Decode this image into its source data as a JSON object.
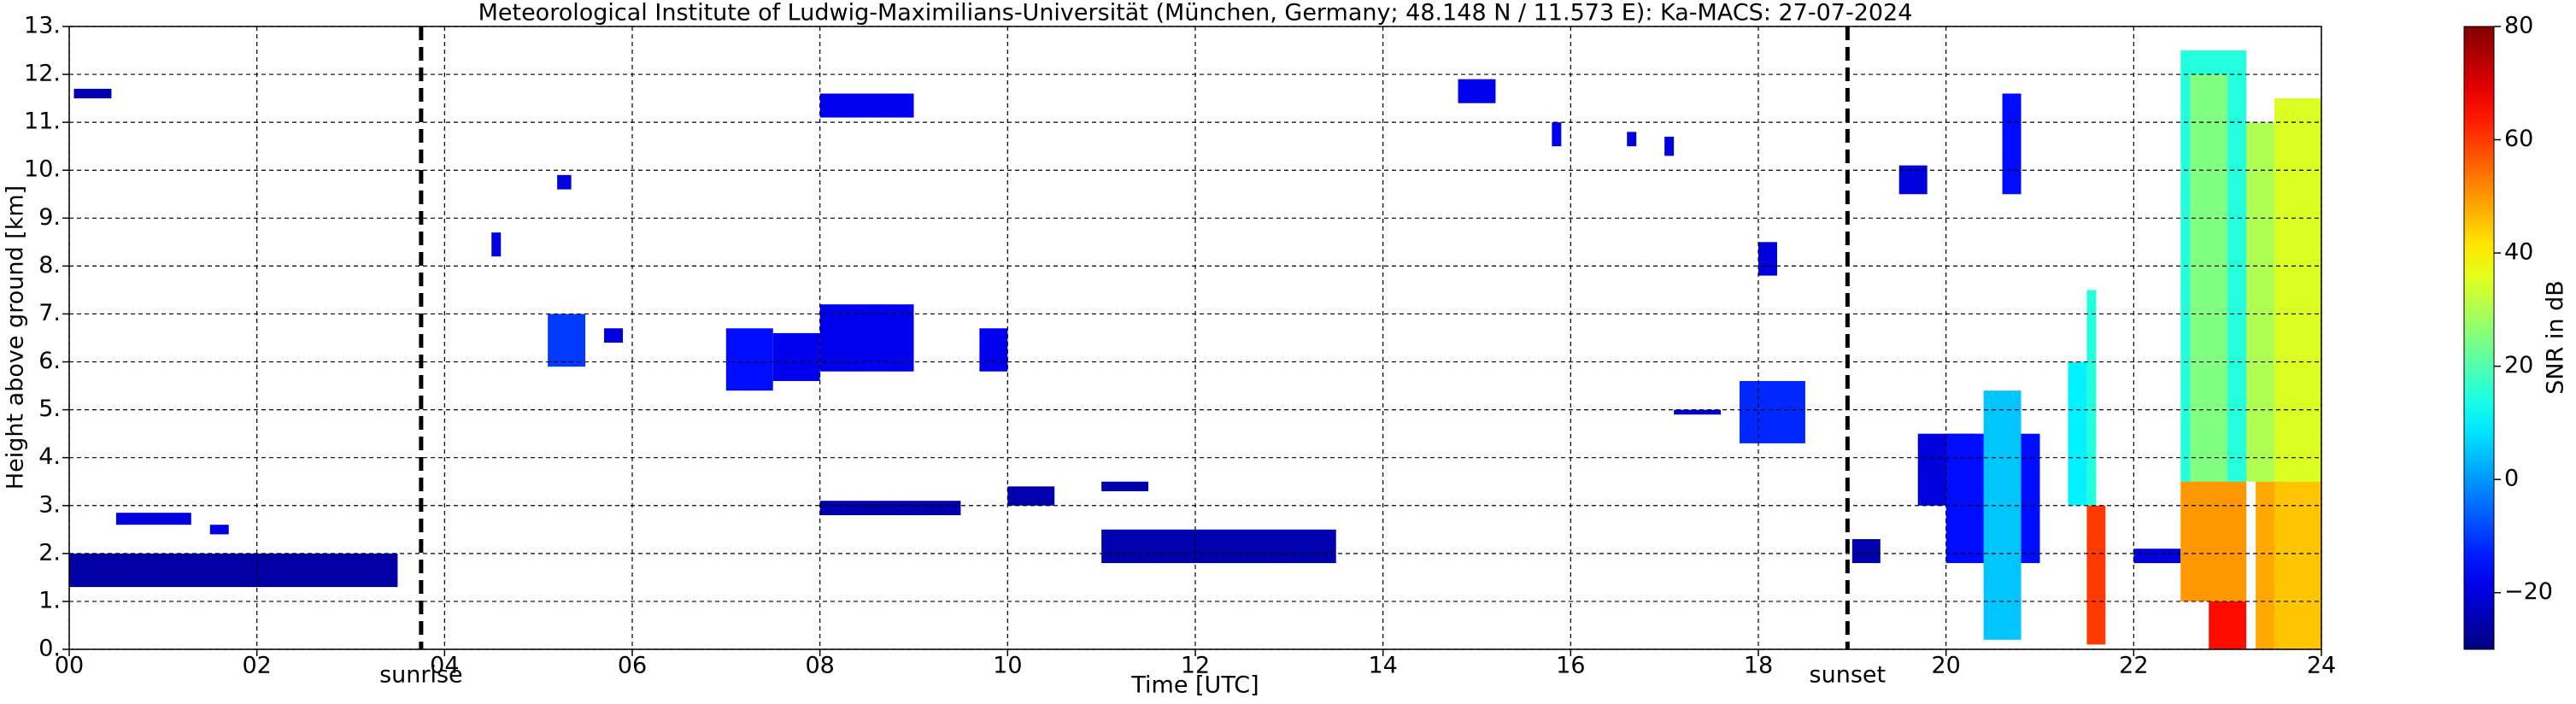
{
  "chart_data": {
    "type": "heatmap",
    "title": "Meteorological Institute of Ludwig-Maximilians-Universität (München, Germany; 48.148 N / 11.573 E):    Ka-MACS: 27-07-2024",
    "xlabel": "Time [UTC]",
    "ylabel": "Height above ground [km]",
    "colorbar_label": "SNR in dB",
    "xlim": [
      0,
      24
    ],
    "ylim": [
      0,
      13
    ],
    "clim": [
      -30,
      80
    ],
    "colormap": "jet",
    "grid": true,
    "xticks": [
      {
        "value": 0,
        "label": "00"
      },
      {
        "value": 2,
        "label": "02"
      },
      {
        "value": 4,
        "label": "04"
      },
      {
        "value": 6,
        "label": "06"
      },
      {
        "value": 8,
        "label": "08"
      },
      10,
      12,
      14,
      16,
      18,
      20,
      22,
      24
    ],
    "yticks": [
      {
        "value": 0,
        "label": "0."
      },
      {
        "value": 1,
        "label": "1."
      },
      {
        "value": 2,
        "label": "2."
      },
      {
        "value": 3,
        "label": "3."
      },
      {
        "value": 4,
        "label": "4."
      },
      {
        "value": 5,
        "label": "5."
      },
      {
        "value": 6,
        "label": "6."
      },
      {
        "value": 7,
        "label": "7."
      },
      {
        "value": 8,
        "label": "8."
      },
      {
        "value": 9,
        "label": "9."
      },
      {
        "value": 10,
        "label": "10."
      },
      {
        "value": 11,
        "label": "11."
      },
      {
        "value": 12,
        "label": "12."
      },
      {
        "value": 13,
        "label": "13."
      }
    ],
    "cticks": [
      {
        "value": -20,
        "label": "−20"
      },
      0,
      20,
      40,
      60,
      80
    ],
    "annotations": [
      {
        "text": "sunrise",
        "x": 3.75
      },
      {
        "text": "sunset",
        "x": 18.95
      }
    ],
    "cells": [
      {
        "x": [
          0.05,
          0.45
        ],
        "y": [
          11.5,
          11.7
        ],
        "value": -25
      },
      {
        "x": [
          0.5,
          1.3
        ],
        "y": [
          2.6,
          2.85
        ],
        "value": -20
      },
      {
        "x": [
          1.5,
          1.7
        ],
        "y": [
          2.4,
          2.6
        ],
        "value": -20
      },
      {
        "x": [
          0.0,
          3.5
        ],
        "y": [
          1.3,
          2.0
        ],
        "value": -26
      },
      {
        "x": [
          4.5,
          4.6
        ],
        "y": [
          8.2,
          8.7
        ],
        "value": -20
      },
      {
        "x": [
          5.2,
          5.35
        ],
        "y": [
          9.6,
          9.9
        ],
        "value": -20
      },
      {
        "x": [
          5.1,
          5.5
        ],
        "y": [
          5.9,
          7.0
        ],
        "value": -10
      },
      {
        "x": [
          5.7,
          5.9
        ],
        "y": [
          6.4,
          6.7
        ],
        "value": -20
      },
      {
        "x": [
          7.0,
          7.5
        ],
        "y": [
          5.4,
          6.7
        ],
        "value": -15
      },
      {
        "x": [
          7.5,
          8.0
        ],
        "y": [
          5.6,
          6.6
        ],
        "value": -18
      },
      {
        "x": [
          8.0,
          9.0
        ],
        "y": [
          5.8,
          7.2
        ],
        "value": -18
      },
      {
        "x": [
          9.7,
          10.0
        ],
        "y": [
          5.8,
          6.7
        ],
        "value": -18
      },
      {
        "x": [
          8.0,
          9.0
        ],
        "y": [
          11.1,
          11.6
        ],
        "value": -18
      },
      {
        "x": [
          8.0,
          9.5
        ],
        "y": [
          2.8,
          3.1
        ],
        "value": -25
      },
      {
        "x": [
          10.0,
          10.5
        ],
        "y": [
          3.0,
          3.4
        ],
        "value": -25
      },
      {
        "x": [
          11.0,
          11.5
        ],
        "y": [
          3.3,
          3.5
        ],
        "value": -25
      },
      {
        "x": [
          11.0,
          13.5
        ],
        "y": [
          1.8,
          2.5
        ],
        "value": -25
      },
      {
        "x": [
          14.8,
          15.2
        ],
        "y": [
          11.4,
          11.9
        ],
        "value": -18
      },
      {
        "x": [
          15.8,
          15.9
        ],
        "y": [
          10.5,
          11.0
        ],
        "value": -18
      },
      {
        "x": [
          16.6,
          16.7
        ],
        "y": [
          10.5,
          10.8
        ],
        "value": -20
      },
      {
        "x": [
          17.0,
          17.1
        ],
        "y": [
          10.3,
          10.7
        ],
        "value": -20
      },
      {
        "x": [
          18.0,
          18.2
        ],
        "y": [
          7.8,
          8.5
        ],
        "value": -20
      },
      {
        "x": [
          17.8,
          18.5
        ],
        "y": [
          4.3,
          5.6
        ],
        "value": -12
      },
      {
        "x": [
          17.1,
          17.6
        ],
        "y": [
          4.9,
          5.0
        ],
        "value": -22
      },
      {
        "x": [
          19.5,
          19.8
        ],
        "y": [
          9.5,
          10.1
        ],
        "value": -20
      },
      {
        "x": [
          19.0,
          19.3
        ],
        "y": [
          1.8,
          2.3
        ],
        "value": -25
      },
      {
        "x": [
          19.7,
          20.3
        ],
        "y": [
          3.0,
          4.5
        ],
        "value": -20
      },
      {
        "x": [
          20.0,
          21.0
        ],
        "y": [
          1.8,
          4.5
        ],
        "value": -15
      },
      {
        "x": [
          20.4,
          20.8
        ],
        "y": [
          0.2,
          5.4
        ],
        "value": 5
      },
      {
        "x": [
          20.6,
          20.8
        ],
        "y": [
          9.5,
          11.6
        ],
        "value": -15
      },
      {
        "x": [
          21.3,
          21.5
        ],
        "y": [
          3.0,
          6.0
        ],
        "value": 10
      },
      {
        "x": [
          21.5,
          21.6
        ],
        "y": [
          3.0,
          7.5
        ],
        "value": 15
      },
      {
        "x": [
          21.5,
          21.7
        ],
        "y": [
          0.1,
          3.0
        ],
        "value": 60
      },
      {
        "x": [
          22.0,
          22.5
        ],
        "y": [
          1.8,
          2.1
        ],
        "value": -20
      },
      {
        "x": [
          22.5,
          23.2
        ],
        "y": [
          3.5,
          12.5
        ],
        "value": 15
      },
      {
        "x": [
          22.6,
          23.0
        ],
        "y": [
          3.5,
          12.0
        ],
        "value": 25
      },
      {
        "x": [
          22.5,
          23.2
        ],
        "y": [
          1.0,
          3.5
        ],
        "value": 50
      },
      {
        "x": [
          22.8,
          23.2
        ],
        "y": [
          0.0,
          1.0
        ],
        "value": 65
      },
      {
        "x": [
          23.2,
          23.5
        ],
        "y": [
          3.5,
          11.0
        ],
        "value": 30
      },
      {
        "x": [
          23.3,
          23.6
        ],
        "y": [
          0.0,
          3.5
        ],
        "value": 48
      },
      {
        "x": [
          23.5,
          24.0
        ],
        "y": [
          3.5,
          11.5
        ],
        "value": 35
      },
      {
        "x": [
          23.5,
          24.0
        ],
        "y": [
          0.0,
          3.5
        ],
        "value": 45
      }
    ]
  }
}
